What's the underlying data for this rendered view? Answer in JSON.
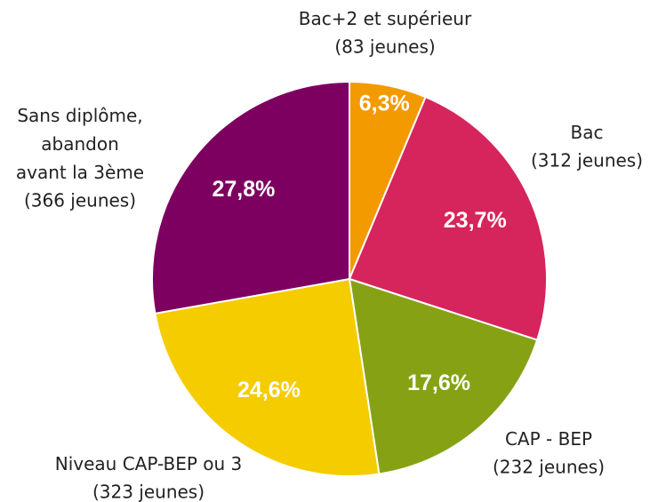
{
  "chart_data": {
    "type": "pie",
    "categories": [
      "Bac+2 et supérieur",
      "Bac",
      "CAP - BEP",
      "Niveau CAP-BEP ou 3",
      "Sans diplôme,\nabandon\navant la 3ème"
    ],
    "count_labels": [
      "(83 jeunes)",
      "(312 jeunes)",
      "(232 jeunes)",
      "(323 jeunes)",
      "(366 jeunes)"
    ],
    "values": [
      6.3,
      23.7,
      17.6,
      24.6,
      27.8
    ],
    "value_labels": [
      "6,3%",
      "23,7%",
      "17,6%",
      "24,6%",
      "27,8%"
    ],
    "colors": [
      "#f29a00",
      "#d6245c",
      "#86a214",
      "#f5cc00",
      "#7d0060"
    ]
  }
}
